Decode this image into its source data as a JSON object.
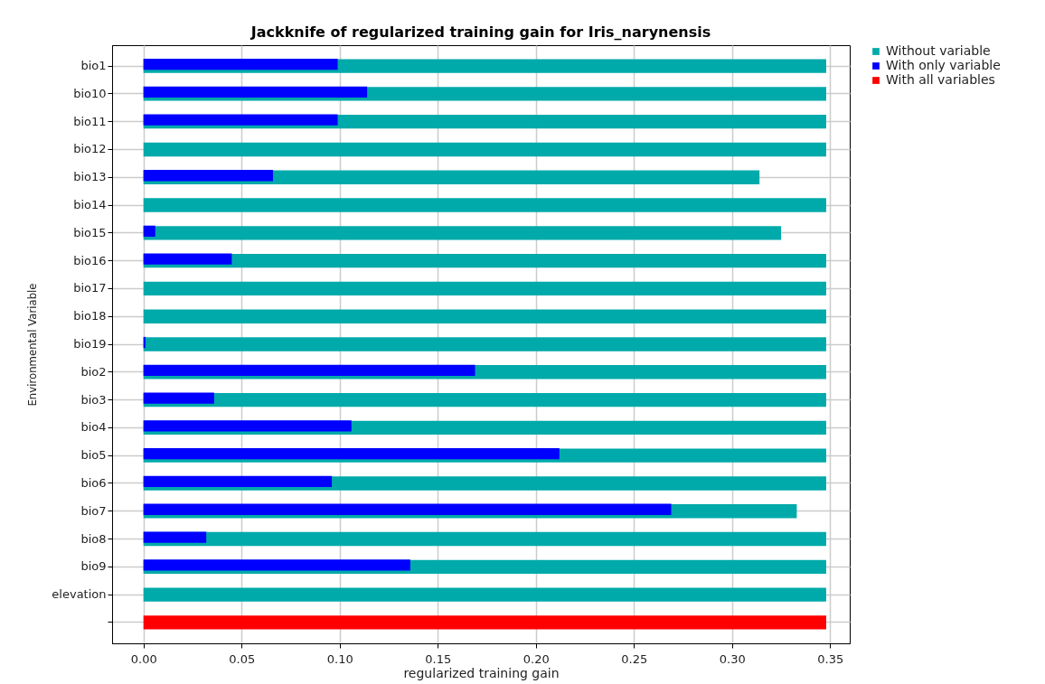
{
  "chart_data": {
    "type": "bar",
    "orientation": "horizontal",
    "title": "Jackknife of regularized training gain for Iris_narynensis",
    "xlabel": "regularized training gain",
    "ylabel": "Environmental Variable",
    "categories": [
      "bio1",
      "bio10",
      "bio11",
      "bio12",
      "bio13",
      "bio14",
      "bio15",
      "bio16",
      "bio17",
      "bio18",
      "bio19",
      "bio2",
      "bio3",
      "bio4",
      "bio5",
      "bio6",
      "bio7",
      "bio8",
      "bio9",
      "elevation",
      null
    ],
    "series": [
      {
        "name": "Without variable",
        "color": "#00aaaa",
        "values": [
          0.348,
          0.348,
          0.348,
          0.348,
          0.314,
          0.348,
          0.325,
          0.348,
          0.348,
          0.348,
          0.348,
          0.348,
          0.348,
          0.348,
          0.348,
          0.348,
          0.333,
          0.348,
          0.348,
          0.348,
          null
        ]
      },
      {
        "name": "With only variable",
        "color": "#0000ff",
        "values": [
          0.099,
          0.114,
          0.099,
          null,
          0.066,
          null,
          0.006,
          0.045,
          null,
          null,
          0.001,
          0.169,
          0.036,
          0.106,
          0.212,
          0.096,
          0.269,
          0.032,
          0.136,
          null,
          null
        ]
      },
      {
        "name": "With all variables",
        "color": "#ff0000",
        "values": [
          null,
          null,
          null,
          null,
          null,
          null,
          null,
          null,
          null,
          null,
          null,
          null,
          null,
          null,
          null,
          null,
          null,
          null,
          null,
          null,
          0.348
        ]
      }
    ],
    "xlim": [
      -0.016,
      0.36
    ],
    "xticks": [
      {
        "value": 0,
        "label": "0.00"
      },
      {
        "value": 0.05,
        "label": "0.05"
      },
      {
        "value": 0.1,
        "label": "0.10"
      },
      {
        "value": 0.15,
        "label": "0.15"
      },
      {
        "value": 0.2,
        "label": "0.20"
      },
      {
        "value": 0.25,
        "label": "0.25"
      },
      {
        "value": 0.3,
        "label": "0.30"
      },
      {
        "value": 0.35,
        "label": "0.35"
      }
    ],
    "grid": true,
    "legend": "top right"
  }
}
